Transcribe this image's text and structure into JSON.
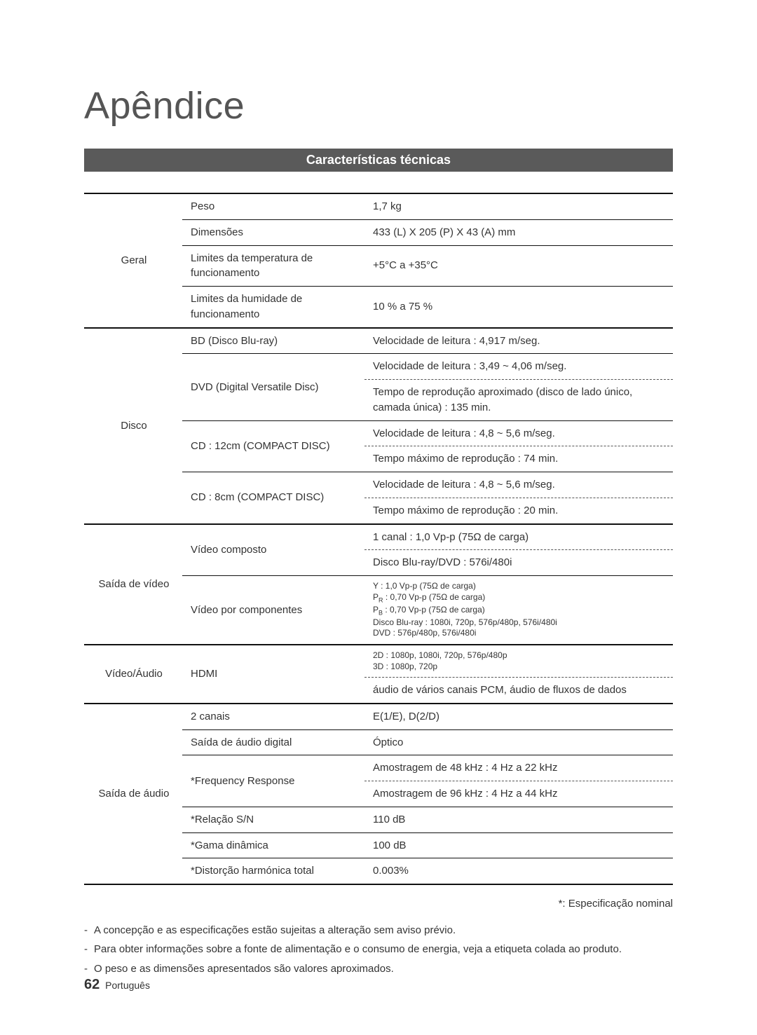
{
  "title": "Apêndice",
  "section_heading": "Características técnicas",
  "nominal_note": "*: Especificação nominal",
  "footer": {
    "page_num": "62",
    "lang": "Português"
  },
  "bullets": [
    "A concepção e as especificações estão sujeitas a alteração sem aviso prévio.",
    "Para obter informações sobre a fonte de alimentação e o consumo de energia, veja a etiqueta colada ao produto.",
    "O peso e as dimensões apresentados são valores aproximados."
  ],
  "geral": {
    "group": "Geral",
    "peso_label": "Peso",
    "peso_val": "1,7 kg",
    "dim_label": "Dimensões",
    "dim_val": "433 (L) X 205 (P) X 43 (A) mm",
    "temp_label": "Limites da temperatura de funcionamento",
    "temp_val": "+5°C a +35°C",
    "hum_label": "Limites da humidade de funcionamento",
    "hum_val": "10 % a 75 %"
  },
  "disco": {
    "group": "Disco",
    "bd_label": "BD (Disco Blu-ray)",
    "bd_val": "Velocidade de leitura : 4,917 m/seg.",
    "dvd_label": "DVD (Digital Versatile Disc)",
    "dvd_v1": "Velocidade de leitura : 3,49 ~ 4,06 m/seg.",
    "dvd_v2": "Tempo de reprodução aproximado (disco de lado único, camada única) : 135 min.",
    "cd12_label": "CD : 12cm (COMPACT DISC)",
    "cd12_v1": "Velocidade de leitura : 4,8 ~ 5,6 m/seg.",
    "cd12_v2": "Tempo máximo de reprodução : 74 min.",
    "cd8_label": "CD : 8cm (COMPACT DISC)",
    "cd8_v1": "Velocidade de leitura : 4,8 ~ 5,6 m/seg.",
    "cd8_v2": "Tempo máximo de reprodução : 20 min."
  },
  "video_out": {
    "group": "Saída de vídeo",
    "comp_label": "Vídeo composto",
    "comp_v1": "1 canal : 1,0 Vp-p (75Ω de carga)",
    "comp_v2": "Disco Blu-ray/DVD : 576i/480i",
    "ypbpr_label": "Vídeo por componentes",
    "ypbpr_y": "Y  : 1,0 Vp-p (75Ω de carga)",
    "ypbpr_pr": " : 0,70 Vp-p (75Ω de carga)",
    "ypbpr_pb": " : 0,70 Vp-p (75Ω de carga)",
    "ypbpr_bd": "Disco Blu-ray : 1080i, 720p, 576p/480p, 576i/480i",
    "ypbpr_dvd": "DVD : 576p/480p, 576i/480i"
  },
  "va": {
    "group": "Vídeo/Áudio",
    "hdmi_label": "HDMI",
    "hdmi_v1a": "2D : 1080p, 1080i, 720p, 576p/480p",
    "hdmi_v1b": "3D : 1080p, 720p",
    "hdmi_v2": "áudio de vários canais PCM, áudio de fluxos de dados"
  },
  "audio_out": {
    "group": "Saída de áudio",
    "ch_label": "2 canais",
    "ch_val": "E(1/E), D(2/D)",
    "dig_label": "Saída de áudio digital",
    "dig_val": "Óptico",
    "fr_label": "*Frequency Response",
    "fr_v1": "Amostragem de 48 kHz : 4 Hz a 22 kHz",
    "fr_v2": "Amostragem de 96 kHz : 4 Hz a 44 kHz",
    "sn_label": "*Relação S/N",
    "sn_val": "110 dB",
    "dr_label": "*Gama dinâmica",
    "dr_val": "100 dB",
    "thd_label": "*Distorção harmónica total",
    "thd_val": "0.003%"
  }
}
